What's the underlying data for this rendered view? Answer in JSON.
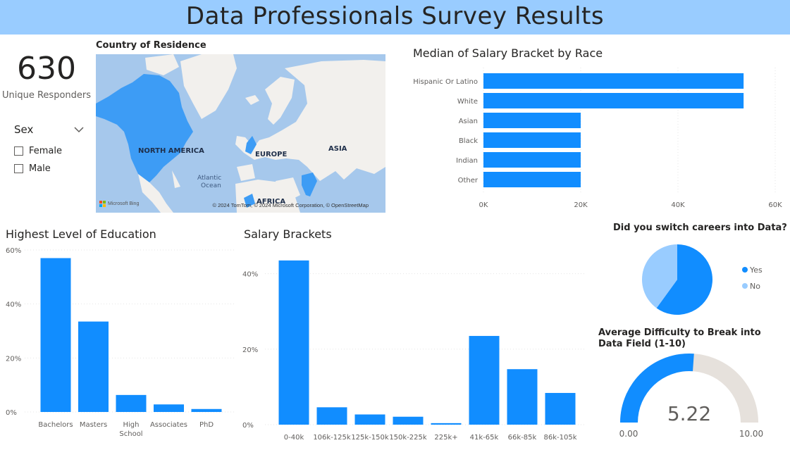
{
  "header": {
    "title": "Data Professionals Survey Results"
  },
  "kpi": {
    "value": "630",
    "label": "Unique Responders"
  },
  "slicer": {
    "title": "Sex",
    "options": [
      "Female",
      "Male"
    ]
  },
  "map": {
    "title": "Country of Residence",
    "labels": {
      "north_america": "NORTH AMERICA",
      "europe": "EUROPE",
      "asia": "ASIA",
      "africa": "AFRICA",
      "ocean": "Atlantic Ocean",
      "ocean_l1": "Atlantic",
      "ocean_l2": "Ocean"
    },
    "logo": "Microsoft Bing",
    "credit": "© 2024 TomTom, © 2024 Microsoft Corporation, © OpenStreetMap"
  },
  "colors": {
    "primary": "#118dff",
    "light": "#99ccff",
    "gauge_track": "#e6e1dc",
    "text": "#252423",
    "axis": "#605e5c"
  },
  "chart_data": [
    {
      "id": "race",
      "type": "bar",
      "orientation": "horizontal",
      "title": "Median of Salary Bracket by Race",
      "categories": [
        "Hispanic Or Latino",
        "White",
        "Asian",
        "Black",
        "Indian",
        "Other"
      ],
      "values": [
        53500,
        53500,
        20000,
        20000,
        20000,
        20000
      ],
      "xlim": [
        0,
        60000
      ],
      "ticks": [
        0,
        20000,
        40000,
        60000
      ],
      "tick_labels": [
        "0K",
        "20K",
        "40K",
        "60K"
      ]
    },
    {
      "id": "education",
      "type": "bar",
      "title": "Highest Level of Education",
      "categories": [
        "Bachelors",
        "Masters",
        "High School",
        "Associates",
        "PhD"
      ],
      "values": [
        57,
        33.5,
        6.3,
        2.8,
        1.1
      ],
      "ylim": [
        0,
        60
      ],
      "ticks": [
        0,
        20,
        40,
        60
      ],
      "tick_labels": [
        "0%",
        "20%",
        "40%",
        "60%"
      ]
    },
    {
      "id": "salary",
      "type": "bar",
      "title": "Salary Brackets",
      "categories": [
        "0-40k",
        "106k-125k",
        "125k-150k",
        "150k-225k",
        "225k+",
        "41k-65k",
        "66k-85k",
        "86k-105k"
      ],
      "values": [
        43.5,
        4.6,
        2.7,
        2.1,
        0.4,
        23.5,
        14.7,
        8.4
      ],
      "ylim": [
        0,
        50
      ],
      "ticks": [
        0,
        20,
        40
      ],
      "tick_labels": [
        "0%",
        "20%",
        "40%"
      ]
    },
    {
      "id": "switch",
      "type": "pie",
      "title": "Did you switch careers into Data?",
      "categories": [
        "Yes",
        "No"
      ],
      "values": [
        60,
        40
      ],
      "legend": "right"
    },
    {
      "id": "difficulty",
      "type": "gauge",
      "title": "Average Difficulty to Break into Data Field (1-10)",
      "value": 5.22,
      "value_label": "5.22",
      "min_label": "0.00",
      "max_label": "10.00",
      "range": [
        0,
        10
      ]
    }
  ]
}
